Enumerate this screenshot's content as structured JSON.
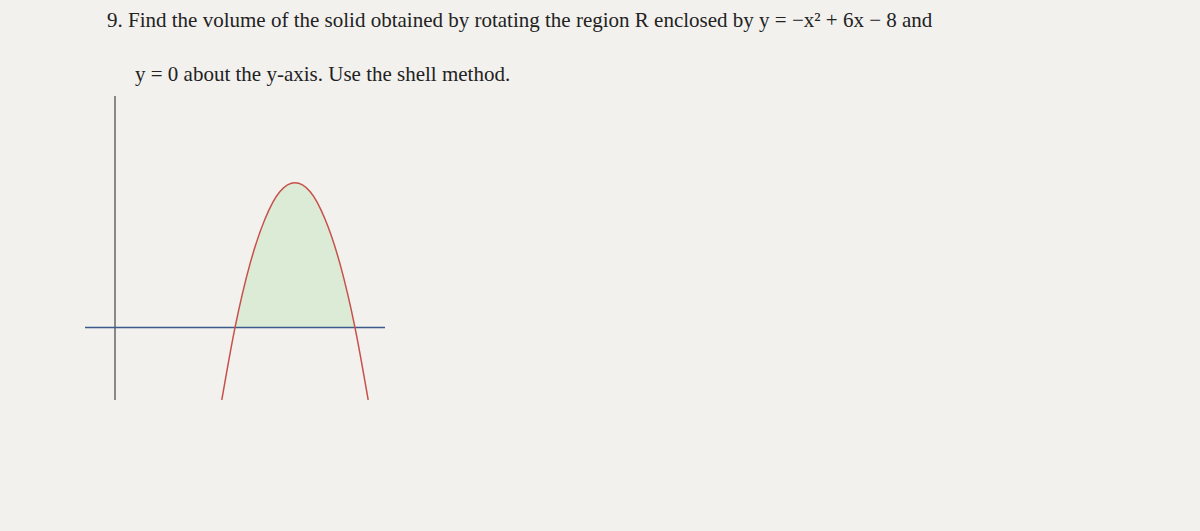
{
  "problem": {
    "lines": [
      "9. Find the volume of the solid obtained by rotating the region R enclosed by y = −x² + 6x − 8 and",
      "y = 0 about the y-axis. Use the shell method."
    ]
  },
  "chart_data": {
    "type": "line",
    "x": [
      1.78,
      2,
      2.25,
      2.5,
      2.75,
      3,
      3.25,
      3.5,
      3.75,
      4,
      4.22
    ],
    "series": [
      {
        "name": "y = −x² + 6x − 8",
        "type": "line",
        "color": "#c8504a",
        "values": [
          -0.5,
          0,
          0.44,
          0.75,
          0.94,
          1,
          0.94,
          0.75,
          0.44,
          0,
          -0.5
        ]
      },
      {
        "name": "R",
        "type": "area",
        "color": "#dcebd6",
        "values": [
          null,
          0,
          0.44,
          0.75,
          0.94,
          1,
          0.94,
          0.75,
          0.44,
          0,
          null
        ]
      }
    ],
    "xlim": [
      -0.5,
      4.5
    ],
    "ylim": [
      -0.5,
      1.6
    ],
    "tick_labels": false,
    "grid": false
  }
}
